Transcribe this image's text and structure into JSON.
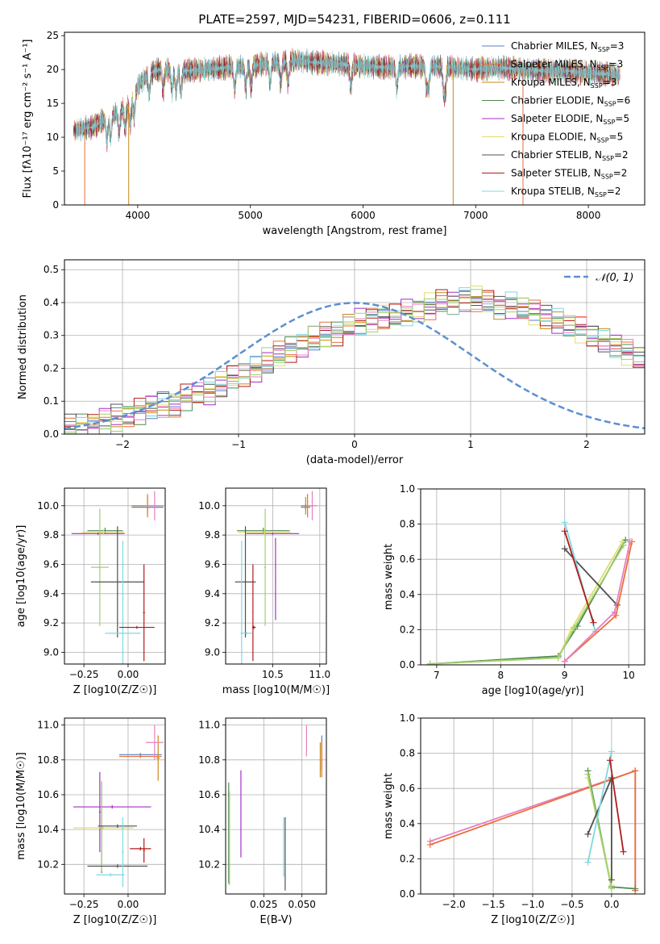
{
  "colors": {
    "chabrier_miles": "#5b7fc4",
    "salpeter_miles": "#e8703a",
    "kroupa_miles": "#c78a16",
    "chabrier_elodie": "#4f8a4f",
    "salpeter_elodie": "#a52fc4",
    "kroupa_elodie": "#e2dd6a",
    "chabrier_stelib": "#505050",
    "salpeter_stelib": "#b31a1a",
    "kroupa_stelib": "#7fd8df",
    "normal": "#5b8fd4",
    "pink": "#e87fbf",
    "green": "#a0d070",
    "grid": "#b0b0b0"
  },
  "chart_data": [
    {
      "type": "line",
      "title": "PLATE=2597, MJD=54231, FIBERID=0606, z=0.111",
      "xlabel": "wavelength [Angstrom, rest frame]",
      "ylabel": "Flux [fλ10⁻¹⁷ erg cm⁻² s⁻¹ A⁻¹]",
      "xlim": [
        3350,
        8500
      ],
      "ylim": [
        0,
        25.5
      ],
      "xticks": [
        4000,
        5000,
        6000,
        7000,
        8000
      ],
      "yticks": [
        0,
        5,
        10,
        15,
        20,
        25
      ],
      "legend_position": "top-right",
      "series": [
        {
          "name": "Chabrier MILES, N_SSP=3",
          "color_key": "chabrier_miles"
        },
        {
          "name": "Salpeter MILES, N_SSP=3",
          "color_key": "salpeter_miles"
        },
        {
          "name": "Kroupa MILES, N_SSP=3",
          "color_key": "kroupa_miles"
        },
        {
          "name": "Chabrier ELODIE, N_SSP=6",
          "color_key": "chabrier_elodie"
        },
        {
          "name": "Salpeter ELODIE, N_SSP=5",
          "color_key": "salpeter_elodie"
        },
        {
          "name": "Kroupa ELODIE, N_SSP=5",
          "color_key": "kroupa_elodie"
        },
        {
          "name": "Chabrier STELIB, N_SSP=2",
          "color_key": "chabrier_stelib"
        },
        {
          "name": "Salpeter STELIB, N_SSP=2",
          "color_key": "salpeter_stelib"
        },
        {
          "name": "Kroupa STELIB, N_SSP=2",
          "color_key": "kroupa_stelib"
        }
      ],
      "continuum": {
        "x": [
          3430,
          3600,
          3700,
          3800,
          3900,
          3950,
          4000,
          4100,
          4200,
          4400,
          4600,
          4800,
          5000,
          5200,
          5400,
          5600,
          5800,
          6000,
          6200,
          6400,
          6600,
          6800,
          7000,
          7200,
          7400,
          7600,
          7800,
          8000,
          8280
        ],
        "y": [
          11.0,
          11.5,
          12.5,
          13.5,
          14.5,
          15.5,
          17.5,
          19.5,
          20.0,
          19.8,
          20.0,
          20.3,
          20.5,
          21.0,
          21.3,
          21.0,
          20.8,
          20.5,
          20.3,
          20.5,
          20.5,
          20.3,
          20.0,
          20.3,
          20.0,
          19.8,
          19.8,
          19.5,
          19.2
        ]
      },
      "absorption_lines": [
        3727,
        3760,
        3835,
        3889,
        3934,
        3969,
        4102,
        4227,
        4304,
        4340,
        4383,
        4861,
        4959,
        5007,
        5175,
        5270,
        5335,
        5892,
        6300,
        6563,
        6583,
        6716,
        6731
      ]
    },
    {
      "type": "step",
      "xlabel": "(data-model)/error",
      "ylabel": "Normed distribution",
      "xlim": [
        -2.5,
        2.5
      ],
      "ylim": [
        0,
        0.53
      ],
      "xticks": [
        -2,
        -1,
        0,
        1,
        2
      ],
      "yticks": [
        0.0,
        0.1,
        0.2,
        0.3,
        0.4,
        0.5
      ],
      "legend_position": "top-right",
      "reference_curve": {
        "label": "𝒩(0, 1)",
        "mu": 0,
        "sigma": 1,
        "style": "dashed"
      },
      "bin_width": 0.1,
      "bins_start": -2.5,
      "histogram_base": [
        0.02,
        0.025,
        0.03,
        0.04,
        0.05,
        0.06,
        0.07,
        0.08,
        0.09,
        0.09,
        0.11,
        0.12,
        0.13,
        0.15,
        0.17,
        0.18,
        0.2,
        0.22,
        0.24,
        0.26,
        0.27,
        0.29,
        0.3,
        0.31,
        0.33,
        0.34,
        0.35,
        0.36,
        0.36,
        0.37,
        0.38,
        0.39,
        0.4,
        0.4,
        0.41,
        0.41,
        0.4,
        0.39,
        0.39,
        0.38,
        0.37,
        0.36,
        0.34,
        0.33,
        0.32,
        0.3,
        0.28,
        0.27,
        0.25,
        0.23,
        0.21,
        0.19,
        0.18,
        0.16,
        0.14,
        0.13,
        0.11,
        0.1,
        0.09,
        0.08,
        0.07,
        0.06,
        0.05,
        0.05,
        0.04,
        0.035,
        0.03,
        0.025,
        0.02,
        0.02
      ]
    },
    {
      "type": "errorbar",
      "xlabel": "Z [log10(Z/Z☉)]",
      "ylabel": "age  [log10(age/yr)]",
      "xlim": [
        -0.36,
        0.21
      ],
      "ylim": [
        8.92,
        10.12
      ],
      "xticks": [
        -0.25,
        0.0
      ],
      "xticklabels": [
        "−0.25",
        "0.00"
      ],
      "yticks": [
        9.0,
        9.2,
        9.4,
        9.6,
        9.8,
        10.0
      ],
      "points": [
        {
          "c": "chabrier_miles",
          "x": 0.11,
          "xe": 0.09,
          "y": 9.99,
          "ye": 0.02
        },
        {
          "c": "salpeter_miles",
          "x": 0.11,
          "xe": 0.09,
          "y": 10.0,
          "ye": 0.08
        },
        {
          "c": "kroupa_miles",
          "x": 0.11,
          "xe": 0.09,
          "y": 10.0,
          "ye": 0.06
        },
        {
          "c": "pink",
          "x": 0.15,
          "xe": 0.05,
          "y": 10.0,
          "ye": 0.1
        },
        {
          "c": "chabrier_elodie",
          "x": -0.13,
          "xe": 0.1,
          "y": 9.83,
          "ye": 0.02
        },
        {
          "c": "salpeter_elodie",
          "x": -0.17,
          "xe": 0.15,
          "y": 9.81,
          "ye": 0.01
        },
        {
          "c": "kroupa_elodie",
          "x": -0.14,
          "xe": 0.12,
          "y": 9.82,
          "ye": 0.02
        },
        {
          "c": "green",
          "x": -0.16,
          "xe": 0.05,
          "y": 9.58,
          "ye": 0.4
        },
        {
          "c": "chabrier_stelib",
          "x": -0.06,
          "xe": 0.15,
          "y": 9.48,
          "ye": 0.38
        },
        {
          "c": "kroupa_stelib",
          "x": -0.03,
          "xe": 0.1,
          "y": 9.13,
          "ye": 0.63
        },
        {
          "c": "salpeter_stelib",
          "x": 0.05,
          "xe": 0.1,
          "y": 9.17,
          "ye": 0.01
        },
        {
          "c": "salpeter_stelib",
          "x": 0.09,
          "xe": 0.005,
          "y": 9.27,
          "ye": 0.33
        }
      ]
    },
    {
      "type": "errorbar",
      "xlabel": "mass [log10(M/M☉)]",
      "ylabel": "",
      "xlim": [
        10.0,
        11.07
      ],
      "ylim": [
        8.92,
        10.12
      ],
      "xticks": [
        10.5,
        11.0
      ],
      "xticklabels": [
        "10.5",
        "11.0"
      ],
      "yticks": [
        9.0,
        9.2,
        9.4,
        9.6,
        9.8,
        10.0
      ],
      "points": [
        {
          "c": "chabrier_miles",
          "x": 10.85,
          "xe": 0.05,
          "y": 9.99,
          "ye": 0.02
        },
        {
          "c": "salpeter_miles",
          "x": 10.87,
          "xe": 0.07,
          "y": 10.0,
          "ye": 0.08
        },
        {
          "c": "kroupa_miles",
          "x": 10.85,
          "xe": 0.05,
          "y": 10.0,
          "ye": 0.06
        },
        {
          "c": "pink",
          "x": 10.92,
          "xe": 0.05,
          "y": 10.0,
          "ye": 0.1
        },
        {
          "c": "chabrier_elodie",
          "x": 10.4,
          "xe": 0.28,
          "y": 9.83,
          "ye": 0.02
        },
        {
          "c": "salpeter_elodie",
          "x": 10.5,
          "xe": 0.28,
          "y": 9.81,
          "ye": 0.01
        },
        {
          "c": "kroupa_elodie",
          "x": 10.41,
          "xe": 0.28,
          "y": 9.82,
          "ye": 0.02
        },
        {
          "c": "green",
          "x": 10.42,
          "xe": 0.01,
          "y": 9.58,
          "ye": 0.4
        },
        {
          "c": "chabrier_stelib",
          "x": 10.21,
          "xe": 0.11,
          "y": 9.48,
          "ye": 0.38
        },
        {
          "c": "kroupa_stelib",
          "x": 10.17,
          "xe": 0.01,
          "y": 9.13,
          "ye": 0.63
        },
        {
          "c": "kroupa_stelib",
          "x": 10.22,
          "xe": 0.06,
          "y": 9.13,
          "ye": 0.01
        },
        {
          "c": "salpeter_stelib",
          "x": 10.3,
          "xe": 0.02,
          "y": 9.17,
          "ye": 0.01
        },
        {
          "c": "salpeter_stelib",
          "x": 10.29,
          "xe": 0.005,
          "y": 9.27,
          "ye": 0.33
        },
        {
          "c": "salpeter_elodie",
          "x": 10.53,
          "xe": 0.005,
          "y": 9.5,
          "ye": 0.28
        }
      ]
    },
    {
      "type": "line",
      "xlabel": "age  [log10(age/yr)]",
      "ylabel": "mass weight",
      "xlim": [
        6.75,
        10.25
      ],
      "ylim": [
        0.0,
        1.0
      ],
      "xticks": [
        7,
        8,
        9,
        10
      ],
      "yticks": [
        0.0,
        0.2,
        0.4,
        0.6,
        0.8,
        1.0
      ],
      "series": [
        {
          "c": "chabrier_elodie",
          "x": [
            6.9,
            8.9,
            9.2,
            9.95
          ],
          "y": [
            0.005,
            0.05,
            0.22,
            0.71
          ]
        },
        {
          "c": "kroupa_elodie",
          "x": [
            6.9,
            8.9,
            9.1,
            9.9
          ],
          "y": [
            0.005,
            0.04,
            0.2,
            0.7
          ]
        },
        {
          "c": "green",
          "x": [
            6.9,
            8.9,
            9.15,
            9.92
          ],
          "y": [
            0.005,
            0.04,
            0.21,
            0.68
          ]
        },
        {
          "c": "chabrier_stelib",
          "x": [
            9.0,
            9.82
          ],
          "y": [
            0.66,
            0.34
          ]
        },
        {
          "c": "kroupa_stelib",
          "x": [
            9.0,
            9.48
          ],
          "y": [
            0.81,
            0.19
          ]
        },
        {
          "c": "salpeter_stelib",
          "x": [
            9.0,
            9.45
          ],
          "y": [
            0.76,
            0.24
          ]
        },
        {
          "c": "salpeter_miles",
          "x": [
            9.0,
            9.8,
            10.05
          ],
          "y": [
            0.02,
            0.28,
            0.7
          ]
        },
        {
          "c": "pink",
          "x": [
            9.0,
            9.78,
            10.02
          ],
          "y": [
            0.02,
            0.3,
            0.7
          ]
        }
      ]
    },
    {
      "type": "errorbar",
      "xlabel": "Z [log10(Z/Z☉)]",
      "ylabel": "mass [log10(M/M☉)]",
      "xlim": [
        -0.36,
        0.21
      ],
      "ylim": [
        10.03,
        11.04
      ],
      "xticks": [
        -0.25,
        0.0
      ],
      "xticklabels": [
        "−0.25",
        "0.00"
      ],
      "yticks": [
        10.2,
        10.4,
        10.6,
        10.8,
        11.0
      ],
      "points": [
        {
          "c": "chabrier_miles",
          "x": 0.07,
          "xe": 0.12,
          "y": 10.83,
          "ye": 0.01
        },
        {
          "c": "salpeter_miles",
          "x": 0.07,
          "xe": 0.12,
          "y": 10.82,
          "ye": 0.01
        },
        {
          "c": "kroupa_miles",
          "x": 0.17,
          "xe": 0.01,
          "y": 10.81,
          "ye": 0.13
        },
        {
          "c": "pink",
          "x": 0.15,
          "xe": 0.05,
          "y": 10.9,
          "ye": 0.1
        },
        {
          "c": "salpeter_elodie",
          "x": -0.09,
          "xe": 0.22,
          "y": 10.53,
          "ye": 0.01
        },
        {
          "c": "salpeter_elodie",
          "x": -0.16,
          "xe": 0.005,
          "y": 10.5,
          "ye": 0.23
        },
        {
          "c": "kroupa_elodie",
          "x": -0.14,
          "xe": 0.17,
          "y": 10.41,
          "ye": 0.01
        },
        {
          "c": "chabrier_elodie",
          "x": -0.15,
          "xe": 0.005,
          "y": 10.41,
          "ye": 0.26
        },
        {
          "c": "green",
          "x": -0.15,
          "xe": 0.005,
          "y": 10.42,
          "ye": 0.26
        },
        {
          "c": "chabrier_stelib",
          "x": -0.06,
          "xe": 0.11,
          "y": 10.42,
          "ye": 0.01
        },
        {
          "c": "chabrier_stelib",
          "x": -0.06,
          "xe": 0.17,
          "y": 10.19,
          "ye": 0.01
        },
        {
          "c": "kroupa_stelib",
          "x": -0.03,
          "xe": 0.005,
          "y": 10.27,
          "ye": 0.2
        },
        {
          "c": "kroupa_stelib",
          "x": -0.1,
          "xe": 0.08,
          "y": 10.14,
          "ye": 0.01
        },
        {
          "c": "salpeter_stelib",
          "x": 0.07,
          "xe": 0.06,
          "y": 10.29,
          "ye": 0.01
        },
        {
          "c": "salpeter_stelib",
          "x": 0.09,
          "xe": 0.005,
          "y": 10.28,
          "ye": 0.07
        }
      ]
    },
    {
      "type": "errorbar",
      "xlabel": "E(B-V)",
      "ylabel": "",
      "xlim": [
        0.0,
        0.066
      ],
      "ylim": [
        10.03,
        11.04
      ],
      "xticks": [
        0.025,
        0.05
      ],
      "xticklabels": [
        "0.025",
        "0.050"
      ],
      "yticks": [
        10.2,
        10.4,
        10.6,
        10.8,
        11.0
      ],
      "points": [
        {
          "c": "pink",
          "x": 0.053,
          "xe": 0.0,
          "y": 10.91,
          "ye": 0.09
        },
        {
          "c": "chabrier_miles",
          "x": 0.063,
          "xe": 0.0,
          "y": 10.84,
          "ye": 0.1
        },
        {
          "c": "salpeter_miles",
          "x": 0.063,
          "xe": 0.0,
          "y": 10.8,
          "ye": 0.1
        },
        {
          "c": "kroupa_miles",
          "x": 0.062,
          "xe": 0.0,
          "y": 10.8,
          "ye": 0.1
        },
        {
          "c": "salpeter_elodie",
          "x": 0.01,
          "xe": 0.0,
          "y": 10.49,
          "ye": 0.25
        },
        {
          "c": "chabrier_elodie",
          "x": 0.002,
          "xe": 0.0,
          "y": 10.38,
          "ye": 0.29
        },
        {
          "c": "green",
          "x": 0.0025,
          "xe": 0.0,
          "y": 10.35,
          "ye": 0.27
        },
        {
          "c": "chabrier_stelib",
          "x": 0.039,
          "xe": 0.0,
          "y": 10.26,
          "ye": 0.21
        },
        {
          "c": "kroupa_stelib",
          "x": 0.038,
          "xe": 0.0,
          "y": 10.3,
          "ye": 0.17
        }
      ]
    },
    {
      "type": "line",
      "xlabel": "Z [log10(Z/Z☉)]",
      "ylabel": "mass weight",
      "xlim": [
        -2.42,
        0.42
      ],
      "ylim": [
        0.0,
        1.0
      ],
      "xticks": [
        -2.0,
        -1.5,
        -1.0,
        -0.5,
        0.0
      ],
      "xticklabels": [
        "−2.0",
        "−1.5",
        "−1.0",
        "−0.5",
        "0.0"
      ],
      "yticks": [
        0.0,
        0.2,
        0.4,
        0.6,
        0.8,
        1.0
      ],
      "series": [
        {
          "c": "pink",
          "x": [
            -2.3,
            0.3,
            0.3
          ],
          "y": [
            0.3,
            0.7,
            0.02
          ]
        },
        {
          "c": "salpeter_miles",
          "x": [
            -2.3,
            0.3,
            0.3
          ],
          "y": [
            0.28,
            0.7,
            0.02
          ]
        },
        {
          "c": "chabrier_elodie",
          "x": [
            -0.3,
            0.0,
            0.3
          ],
          "y": [
            0.7,
            0.04,
            0.03
          ]
        },
        {
          "c": "kroupa_elodie",
          "x": [
            -0.3,
            0.0
          ],
          "y": [
            0.66,
            0.05
          ]
        },
        {
          "c": "green",
          "x": [
            -0.3,
            0.0
          ],
          "y": [
            0.68,
            0.03
          ]
        },
        {
          "c": "chabrier_stelib",
          "x": [
            -0.3,
            0.0,
            0.0
          ],
          "y": [
            0.34,
            0.66,
            0.08
          ]
        },
        {
          "c": "kroupa_stelib",
          "x": [
            -0.3,
            0.0
          ],
          "y": [
            0.18,
            0.81
          ]
        },
        {
          "c": "salpeter_stelib",
          "x": [
            -0.02,
            0.15
          ],
          "y": [
            0.76,
            0.24
          ]
        }
      ]
    }
  ]
}
